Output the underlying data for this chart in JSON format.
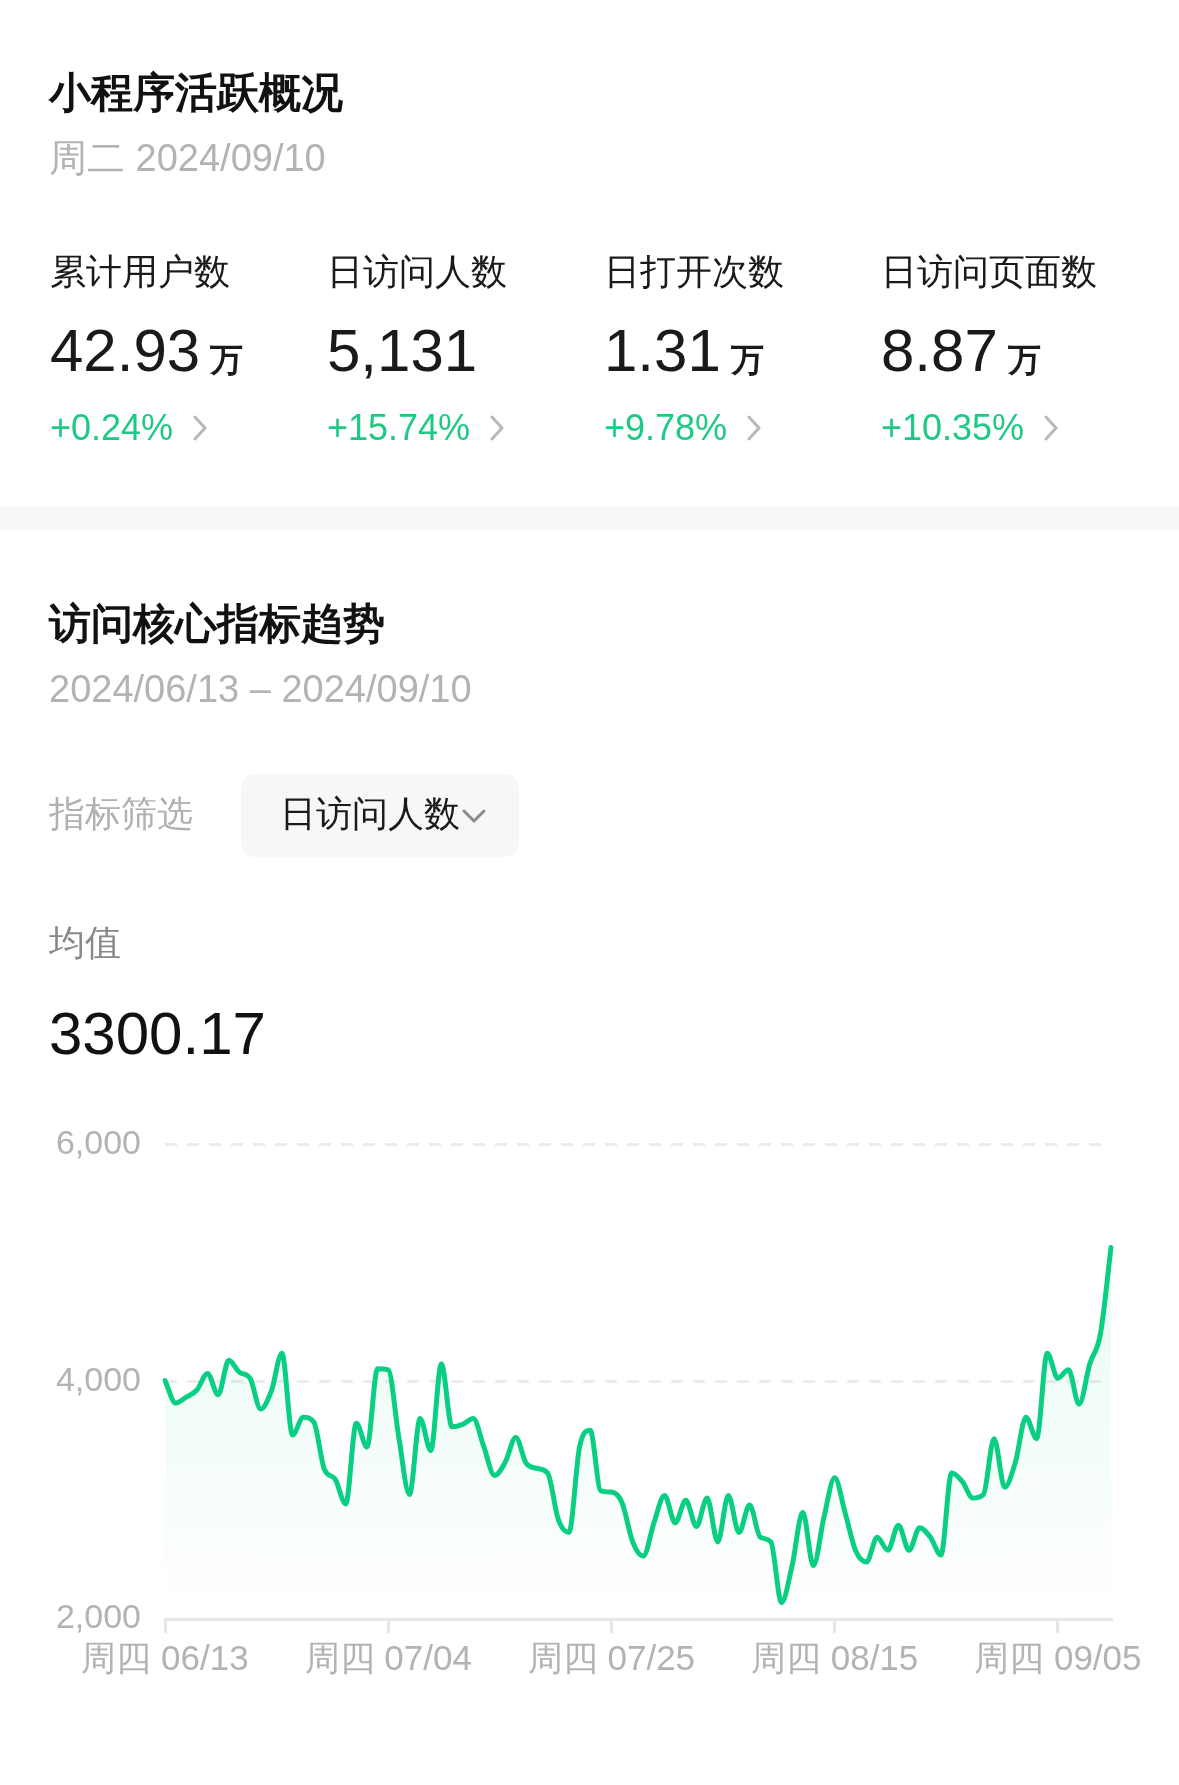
{
  "chart_data": [
    {
      "type": "other",
      "title": "小程序活跃概况",
      "subtitle": "周二 2024/09/10",
      "categories": [
        "累计用户数",
        "日访问人数",
        "日打开次数",
        "日访问页面数"
      ],
      "value_labels": [
        "42.93 万",
        "5,131",
        "1.31 万",
        "8.87 万"
      ],
      "annotations": [
        "+0.24%",
        "+15.74%",
        "+9.78%",
        "+10.35%"
      ]
    },
    {
      "type": "area",
      "title": "访问核心指标趋势",
      "subtitle": "2024/06/13 – 2024/09/10",
      "annotations": [
        "指标筛选",
        "日访问人数",
        "均值",
        "3300.17"
      ],
      "categories": [
        "周四 06/13",
        null,
        null,
        null,
        null,
        null,
        null,
        null,
        null,
        null,
        null,
        null,
        null,
        null,
        null,
        null,
        null,
        null,
        null,
        null,
        null,
        "周四 07/04",
        null,
        null,
        null,
        null,
        null,
        null,
        null,
        null,
        null,
        null,
        null,
        null,
        null,
        null,
        null,
        null,
        null,
        null,
        null,
        null,
        "周四 07/25",
        null,
        null,
        null,
        null,
        null,
        null,
        null,
        null,
        null,
        null,
        null,
        null,
        null,
        null,
        null,
        null,
        null,
        null,
        null,
        null,
        "周四 08/15",
        null,
        null,
        null,
        null,
        null,
        null,
        null,
        null,
        null,
        null,
        null,
        null,
        null,
        null,
        null,
        null,
        null,
        null,
        null,
        null,
        "周四 09/05",
        null,
        null,
        null,
        null,
        null
      ],
      "values": [
        4010,
        3820,
        3870,
        3930,
        4070,
        3890,
        4180,
        4080,
        4030,
        3770,
        3920,
        4240,
        3550,
        3700,
        3660,
        3260,
        3180,
        2970,
        3650,
        3450,
        4110,
        4100,
        3530,
        3050,
        3690,
        3420,
        4150,
        3620,
        3640,
        3690,
        3450,
        3210,
        3320,
        3530,
        3310,
        3270,
        3230,
        2840,
        2730,
        3450,
        3590,
        3080,
        3070,
        2980,
        2650,
        2530,
        2810,
        3040,
        2810,
        3000,
        2780,
        3020,
        2650,
        3040,
        2730,
        2960,
        2690,
        2650,
        2140,
        2450,
        2900,
        2450,
        2860,
        3190,
        2890,
        2570,
        2480,
        2690,
        2580,
        2790,
        2580,
        2770,
        2690,
        2540,
        3230,
        3160,
        3020,
        3050,
        3520,
        3110,
        3320,
        3700,
        3520,
        4240,
        4030,
        4100,
        3810,
        4150,
        4400,
        5131
      ],
      "color": "#0acf83",
      "ylim": [
        2000,
        6000
      ],
      "yticks": [
        {
          "value": 2000,
          "label": "2,000"
        },
        {
          "value": 4000,
          "label": "4,000"
        },
        {
          "value": 6000,
          "label": "6,000"
        }
      ],
      "grid": "y",
      "legend": false,
      "marker": "none"
    }
  ]
}
